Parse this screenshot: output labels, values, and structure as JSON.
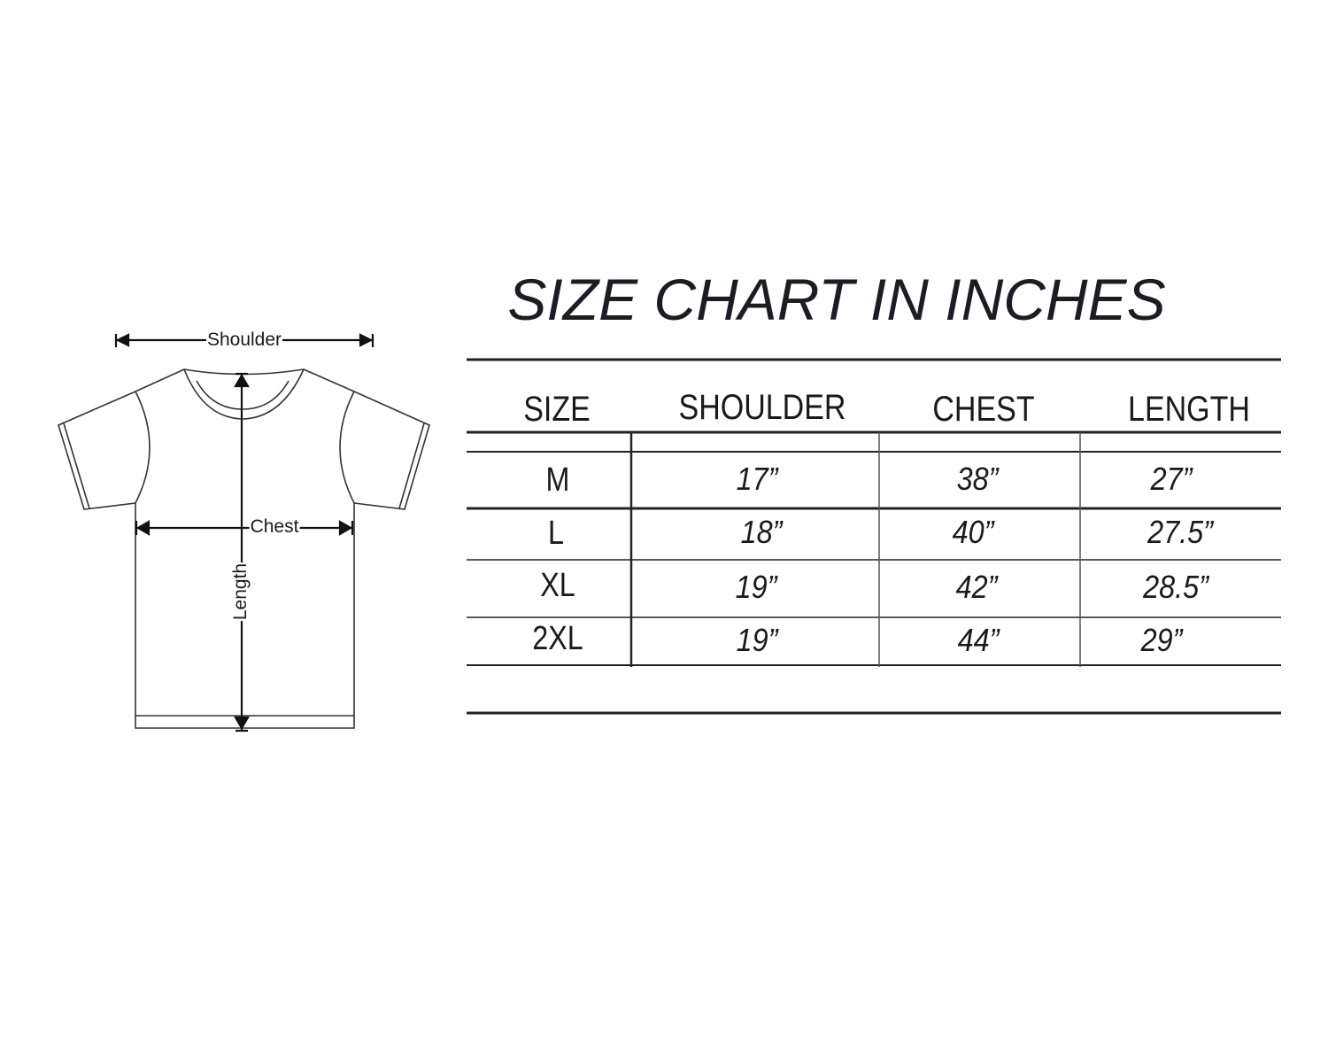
{
  "diagram": {
    "shoulder_label": "Shoulder",
    "chest_label": "Chest",
    "length_label": "Length"
  },
  "table": {
    "title": "SIZE CHART IN INCHES",
    "headers": [
      "SIZE",
      "SHOULDER",
      "CHEST",
      "LENGTH"
    ],
    "rows": [
      [
        "M",
        "17”",
        "38”",
        "27”"
      ],
      [
        "L",
        "18”",
        "40”",
        "27.5”"
      ],
      [
        "XL",
        "19”",
        "42”",
        "28.5”"
      ],
      [
        "2XL",
        "19”",
        "44”",
        "29”"
      ]
    ]
  }
}
